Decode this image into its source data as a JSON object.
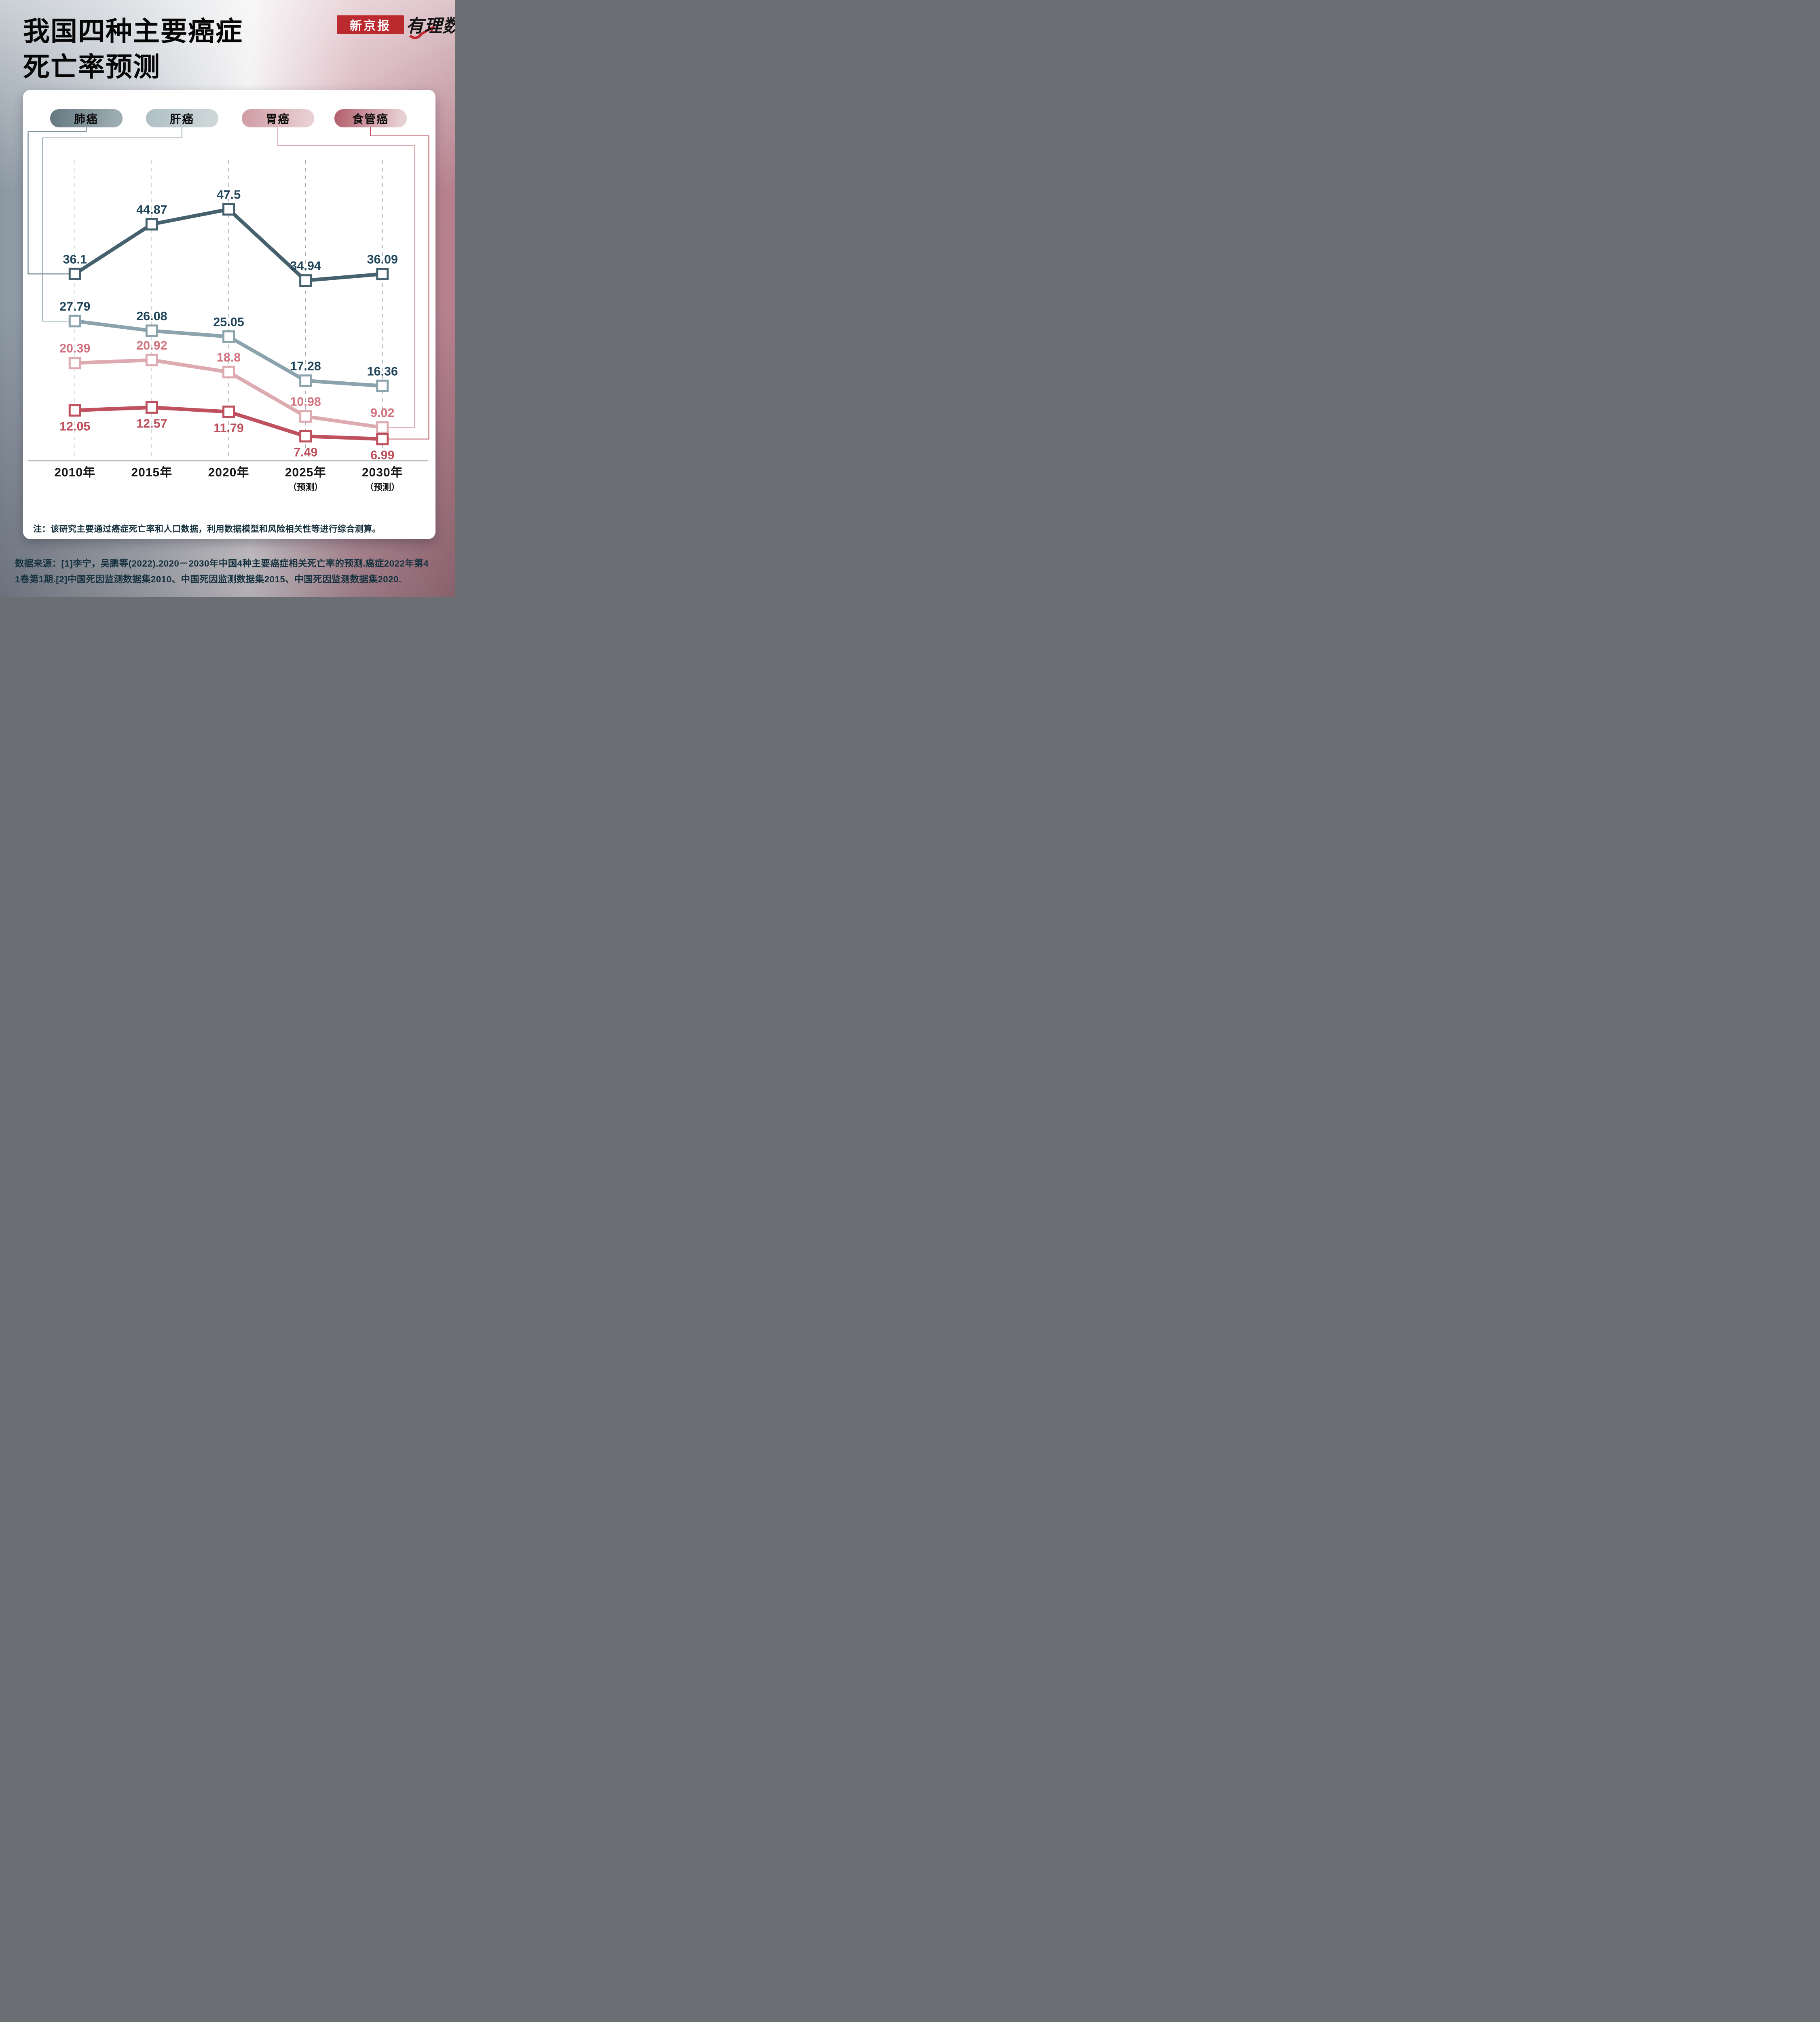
{
  "page": {
    "title_lines": [
      "我国四种主要癌症",
      "死亡率预测"
    ]
  },
  "logo": {
    "masthead": "新京报",
    "masthead_bg": "#ba2a2f",
    "brand": "有理数",
    "accent_red": "#c1272d"
  },
  "legend": [
    {
      "label": "肺癌",
      "gradient_from": "#63777f",
      "gradient_to": "#9dacb2"
    },
    {
      "label": "肝癌",
      "gradient_from": "#aebfc4",
      "gradient_to": "#cdd7d8"
    },
    {
      "label": "胃癌",
      "gradient_from": "#cf9ba3",
      "gradient_to": "#e8cfd1"
    },
    {
      "label": "食管癌",
      "gradient_from": "#b25b68",
      "gradient_to": "#e7d0d3"
    }
  ],
  "chart_data": {
    "type": "line",
    "title": "我国四种主要癌症死亡率预测",
    "categories": [
      "2010年",
      "2015年",
      "2020年",
      "2025年",
      "2030年"
    ],
    "category_sublabels": [
      "",
      "",
      "",
      "（预测）",
      "（预测）"
    ],
    "grid": "vertical-dashed",
    "legend_position": "top",
    "ylim": [
      0,
      56
    ],
    "series": [
      {
        "name": "肺癌",
        "values": [
          36.1,
          44.87,
          47.5,
          34.94,
          36.09
        ],
        "color": "#45616d",
        "label_color": "#21465a",
        "label_position": "above"
      },
      {
        "name": "肝癌",
        "values": [
          27.79,
          26.08,
          25.05,
          17.28,
          16.36
        ],
        "color": "#8ba3ac",
        "label_color": "#21465a",
        "label_position": "above"
      },
      {
        "name": "胃癌",
        "values": [
          20.39,
          20.92,
          18.8,
          10.98,
          9.02
        ],
        "color": "#ddaab0",
        "label_color": "#d2737f",
        "label_position": "above"
      },
      {
        "name": "食管癌",
        "values": [
          12.05,
          12.57,
          11.79,
          7.49,
          6.99
        ],
        "color": "#bf505e",
        "label_color": "#bf505e",
        "label_position": "below"
      }
    ]
  },
  "note": "注：该研究主要通过癌症死亡率和人口数据，利用数据模型和风险相关性等进行综合测算。",
  "source_lines": [
    "数据来源：[1]李宁，吴鹏等(2022).2020－2030年中国4种主要癌症相关死亡率的预测.癌症2022年第4",
    "1卷第1期.[2]中国死因监测数据集2010、中国死因监测数据集2015、中国死因监测数据集2020."
  ]
}
